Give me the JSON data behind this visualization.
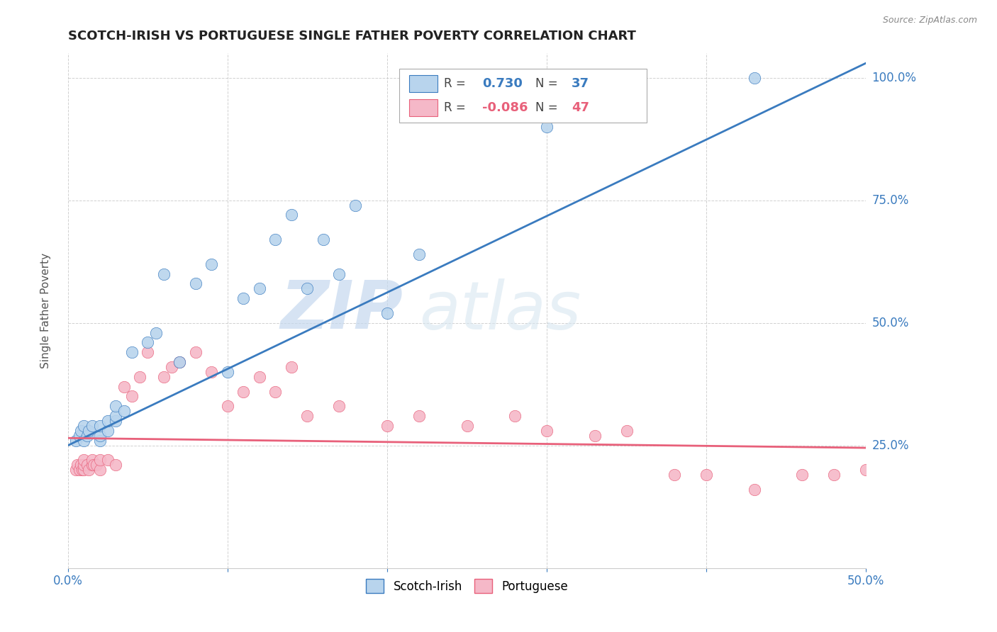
{
  "title": "SCOTCH-IRISH VS PORTUGUESE SINGLE FATHER POVERTY CORRELATION CHART",
  "source": "Source: ZipAtlas.com",
  "ylabel": "Single Father Poverty",
  "xlim": [
    0.0,
    0.5
  ],
  "ylim": [
    0.0,
    1.05
  ],
  "xticks": [
    0.0,
    0.1,
    0.2,
    0.3,
    0.4,
    0.5
  ],
  "xticklabels": [
    "0.0%",
    "",
    "",
    "",
    "",
    "50.0%"
  ],
  "yticks": [
    0.0,
    0.25,
    0.5,
    0.75,
    1.0
  ],
  "yticklabels_left": [
    "",
    "",
    "",
    "",
    ""
  ],
  "yticklabels_right": [
    "",
    "25.0%",
    "50.0%",
    "75.0%",
    "100.0%"
  ],
  "scotch_irish_R": 0.73,
  "scotch_irish_N": 37,
  "portuguese_R": -0.086,
  "portuguese_N": 47,
  "scotch_irish_color": "#b8d4ed",
  "portuguese_color": "#f5b8c8",
  "scotch_irish_line_color": "#3a7bbf",
  "portuguese_line_color": "#e8607a",
  "watermark_zip": "ZIP",
  "watermark_atlas": "atlas",
  "scotch_irish_x": [
    0.005,
    0.007,
    0.008,
    0.01,
    0.01,
    0.012,
    0.013,
    0.015,
    0.02,
    0.02,
    0.02,
    0.025,
    0.025,
    0.03,
    0.03,
    0.03,
    0.035,
    0.04,
    0.05,
    0.055,
    0.06,
    0.07,
    0.08,
    0.09,
    0.1,
    0.11,
    0.12,
    0.13,
    0.14,
    0.15,
    0.16,
    0.17,
    0.18,
    0.2,
    0.22,
    0.3,
    0.43
  ],
  "scotch_irish_y": [
    0.26,
    0.27,
    0.28,
    0.26,
    0.29,
    0.27,
    0.28,
    0.29,
    0.26,
    0.27,
    0.29,
    0.28,
    0.3,
    0.3,
    0.31,
    0.33,
    0.32,
    0.44,
    0.46,
    0.48,
    0.6,
    0.42,
    0.58,
    0.62,
    0.4,
    0.55,
    0.57,
    0.67,
    0.72,
    0.57,
    0.67,
    0.6,
    0.74,
    0.52,
    0.64,
    0.9,
    1.0
  ],
  "portuguese_x": [
    0.005,
    0.006,
    0.007,
    0.008,
    0.009,
    0.01,
    0.01,
    0.01,
    0.012,
    0.013,
    0.015,
    0.015,
    0.016,
    0.018,
    0.02,
    0.02,
    0.025,
    0.03,
    0.035,
    0.04,
    0.045,
    0.05,
    0.06,
    0.065,
    0.07,
    0.08,
    0.09,
    0.1,
    0.11,
    0.12,
    0.13,
    0.14,
    0.15,
    0.17,
    0.2,
    0.22,
    0.25,
    0.28,
    0.3,
    0.33,
    0.35,
    0.38,
    0.4,
    0.43,
    0.46,
    0.48,
    0.5
  ],
  "portuguese_y": [
    0.2,
    0.21,
    0.2,
    0.21,
    0.2,
    0.2,
    0.21,
    0.22,
    0.21,
    0.2,
    0.21,
    0.22,
    0.21,
    0.21,
    0.2,
    0.22,
    0.22,
    0.21,
    0.37,
    0.35,
    0.39,
    0.44,
    0.39,
    0.41,
    0.42,
    0.44,
    0.4,
    0.33,
    0.36,
    0.39,
    0.36,
    0.41,
    0.31,
    0.33,
    0.29,
    0.31,
    0.29,
    0.31,
    0.28,
    0.27,
    0.28,
    0.19,
    0.19,
    0.16,
    0.19,
    0.19,
    0.2
  ],
  "background_color": "#ffffff",
  "grid_color": "#cccccc",
  "reg_line_si_x0": 0.0,
  "reg_line_si_y0": 0.25,
  "reg_line_si_x1": 0.5,
  "reg_line_si_y1": 1.03,
  "reg_line_pt_x0": 0.0,
  "reg_line_pt_y0": 0.265,
  "reg_line_pt_x1": 0.5,
  "reg_line_pt_y1": 0.245
}
